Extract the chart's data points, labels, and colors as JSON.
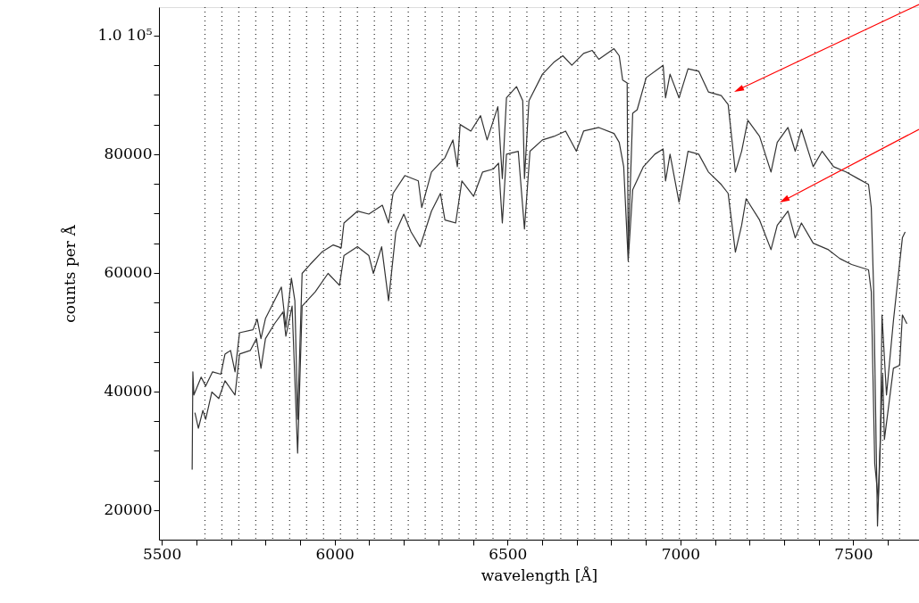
{
  "chart_data": {
    "type": "line",
    "xlabel": "wavelength [Å]",
    "ylabel": "counts per Å",
    "xlim": [
      5492,
      7690
    ],
    "ylim": [
      15000,
      104800
    ],
    "xticks": [
      5500,
      {
        "value": 5600,
        "label": null
      },
      {
        "value": 5700,
        "label": null
      },
      {
        "value": 5800,
        "label": null
      },
      {
        "value": 5900,
        "label": null
      },
      6000,
      {
        "value": 6100,
        "label": null
      },
      {
        "value": 6200,
        "label": null
      },
      {
        "value": 6300,
        "label": null
      },
      {
        "value": 6400,
        "label": null
      },
      6500,
      {
        "value": 6600,
        "label": null
      },
      {
        "value": 6700,
        "label": null
      },
      {
        "value": 6800,
        "label": null
      },
      {
        "value": 6900,
        "label": null
      },
      7000,
      {
        "value": 7100,
        "label": null
      },
      {
        "value": 7200,
        "label": null
      },
      {
        "value": 7300,
        "label": null
      },
      {
        "value": 7400,
        "label": null
      },
      7500,
      {
        "value": 7600,
        "label": null
      }
    ],
    "yticks": [
      20000,
      {
        "value": 25000,
        "label": null
      },
      {
        "value": 30000,
        "label": null
      },
      {
        "value": 35000,
        "label": null
      },
      40000,
      {
        "value": 45000,
        "label": null
      },
      {
        "value": 50000,
        "label": null
      },
      {
        "value": 55000,
        "label": null
      },
      60000,
      {
        "value": 65000,
        "label": null
      },
      {
        "value": 70000,
        "label": null
      },
      {
        "value": 75000,
        "label": null
      },
      80000,
      {
        "value": 85000,
        "label": null
      },
      {
        "value": 90000,
        "label": null
      },
      {
        "value": 95000,
        "label": null
      },
      {
        "value": 100000,
        "label": "1.0 10⁵"
      }
    ],
    "grid": false,
    "marker": "none",
    "line_style": "solid",
    "series": [
      {
        "color": "#333333",
        "x": [
          5588,
          5590,
          5593,
          5614,
          5627,
          5647,
          5671,
          5683,
          5699,
          5712,
          5725,
          5764,
          5776,
          5787,
          5800,
          5826,
          5846,
          5859,
          5875,
          5885,
          5893,
          5906,
          5929,
          5963,
          5996,
          6019,
          6027,
          6066,
          6099,
          6138,
          6156,
          6169,
          6203,
          6242,
          6252,
          6280,
          6319,
          6342,
          6355,
          6363,
          6394,
          6422,
          6441,
          6472,
          6485,
          6497,
          6526,
          6544,
          6549,
          6562,
          6601,
          6634,
          6660,
          6686,
          6720,
          6745,
          6764,
          6808,
          6823,
          6833,
          6846,
          6849,
          6862,
          6875,
          6901,
          6950,
          6957,
          6970,
          6996,
          7022,
          7053,
          7081,
          7118,
          7138,
          7159,
          7177,
          7195,
          7229,
          7262,
          7280,
          7311,
          7332,
          7350,
          7384,
          7410,
          7443,
          7479,
          7513,
          7544,
          7552,
          7559,
          7570,
          7578,
          7583,
          7596,
          7616,
          7642,
          7650
        ],
        "values": [
          26800,
          43300,
          39400,
          42400,
          40900,
          43300,
          42900,
          46300,
          46900,
          43300,
          49900,
          50400,
          52200,
          48900,
          52300,
          55300,
          57600,
          50800,
          59100,
          55300,
          35300,
          59900,
          61400,
          63500,
          64700,
          64200,
          68400,
          70400,
          69900,
          71400,
          68400,
          73400,
          76400,
          75500,
          71000,
          77000,
          79400,
          82400,
          77900,
          85000,
          83900,
          86500,
          82400,
          88000,
          75900,
          89500,
          91400,
          89000,
          75900,
          89000,
          93500,
          95500,
          96600,
          95000,
          97000,
          97500,
          96000,
          97800,
          96600,
          92500,
          92000,
          63900,
          86900,
          87500,
          92900,
          95000,
          89500,
          93500,
          89500,
          94400,
          94000,
          90500,
          89900,
          88400,
          77000,
          80500,
          85700,
          83000,
          77000,
          82000,
          84500,
          80500,
          84200,
          77900,
          80500,
          77900,
          77000,
          75900,
          74900,
          71000,
          56800,
          17300,
          30800,
          52900,
          39400,
          51900,
          65900,
          66900
        ]
      },
      {
        "color": "#333333",
        "x": [
          5596,
          5606,
          5619,
          5627,
          5645,
          5665,
          5683,
          5712,
          5725,
          5756,
          5774,
          5787,
          5800,
          5826,
          5851,
          5859,
          5877,
          5893,
          5906,
          5944,
          5981,
          6014,
          6027,
          6066,
          6099,
          6112,
          6136,
          6156,
          6177,
          6200,
          6221,
          6247,
          6280,
          6306,
          6319,
          6350,
          6368,
          6402,
          6428,
          6459,
          6474,
          6485,
          6497,
          6531,
          6549,
          6565,
          6601,
          6634,
          6668,
          6699,
          6720,
          6764,
          6808,
          6823,
          6836,
          6849,
          6862,
          6893,
          6926,
          6950,
          6957,
          6970,
          6996,
          7022,
          7053,
          7081,
          7118,
          7138,
          7159,
          7177,
          7190,
          7229,
          7262,
          7280,
          7311,
          7332,
          7350,
          7384,
          7428,
          7461,
          7495,
          7544,
          7552,
          7562,
          7572,
          7580,
          7585,
          7590,
          7616,
          7634,
          7642,
          7655
        ],
        "values": [
          36400,
          33800,
          36800,
          35300,
          39900,
          38800,
          41800,
          39400,
          46300,
          46900,
          48900,
          43900,
          48900,
          51400,
          53400,
          49300,
          54400,
          29600,
          54400,
          56800,
          59900,
          57900,
          62900,
          64400,
          62900,
          59900,
          64400,
          55300,
          66900,
          69900,
          66900,
          64400,
          70400,
          73400,
          68900,
          68400,
          75500,
          72900,
          77000,
          77500,
          78500,
          68400,
          80000,
          80500,
          67400,
          80500,
          82400,
          83000,
          83900,
          80500,
          83900,
          84500,
          83500,
          82000,
          77900,
          62000,
          74000,
          77900,
          80000,
          80900,
          75500,
          80000,
          71900,
          80500,
          80000,
          77000,
          74900,
          73400,
          63500,
          68000,
          72500,
          68900,
          63900,
          68000,
          70400,
          65900,
          68400,
          65000,
          63900,
          62400,
          61400,
          60500,
          56800,
          27800,
          21800,
          35300,
          42900,
          31900,
          43900,
          44400,
          52900,
          51400
        ]
      }
    ],
    "ref_lines": [
      {
        "axis": "x",
        "value": 5625,
        "line_style": "dotted"
      },
      {
        "axis": "x",
        "value": 5674,
        "line_style": "dotted"
      },
      {
        "axis": "x",
        "value": 5723,
        "line_style": "dotted"
      },
      {
        "axis": "x",
        "value": 5772,
        "line_style": "dotted"
      },
      {
        "axis": "x",
        "value": 5821,
        "line_style": "dotted"
      },
      {
        "axis": "x",
        "value": 5870,
        "line_style": "dotted"
      },
      {
        "axis": "x",
        "value": 5919,
        "line_style": "dotted"
      },
      {
        "axis": "x",
        "value": 5968,
        "line_style": "dotted"
      },
      {
        "axis": "x",
        "value": 6017,
        "line_style": "dotted"
      },
      {
        "axis": "x",
        "value": 6066,
        "line_style": "dotted"
      },
      {
        "axis": "x",
        "value": 6115,
        "line_style": "dotted"
      },
      {
        "axis": "x",
        "value": 6164,
        "line_style": "dotted"
      },
      {
        "axis": "x",
        "value": 6213,
        "line_style": "dotted"
      },
      {
        "axis": "x",
        "value": 6262,
        "line_style": "dotted"
      },
      {
        "axis": "x",
        "value": 6311,
        "line_style": "dotted"
      },
      {
        "axis": "x",
        "value": 6360,
        "line_style": "dotted"
      },
      {
        "axis": "x",
        "value": 6409,
        "line_style": "dotted"
      },
      {
        "axis": "x",
        "value": 6458,
        "line_style": "dotted"
      },
      {
        "axis": "x",
        "value": 6507,
        "line_style": "dotted"
      },
      {
        "axis": "x",
        "value": 6556,
        "line_style": "dotted"
      },
      {
        "axis": "x",
        "value": 6605,
        "line_style": "dotted"
      },
      {
        "axis": "x",
        "value": 6654,
        "line_style": "dotted"
      },
      {
        "axis": "x",
        "value": 6703,
        "line_style": "dotted"
      },
      {
        "axis": "x",
        "value": 6752,
        "line_style": "dotted"
      },
      {
        "axis": "x",
        "value": 6801,
        "line_style": "dotted"
      },
      {
        "axis": "x",
        "value": 6850,
        "line_style": "dotted"
      },
      {
        "axis": "x",
        "value": 6899,
        "line_style": "dotted"
      },
      {
        "axis": "x",
        "value": 6948,
        "line_style": "dotted"
      },
      {
        "axis": "x",
        "value": 6997,
        "line_style": "dotted"
      },
      {
        "axis": "x",
        "value": 7046,
        "line_style": "dotted"
      },
      {
        "axis": "x",
        "value": 7095,
        "line_style": "dotted"
      },
      {
        "axis": "x",
        "value": 7144,
        "line_style": "dotted"
      },
      {
        "axis": "x",
        "value": 7193,
        "line_style": "dotted"
      },
      {
        "axis": "x",
        "value": 7242,
        "line_style": "dotted"
      },
      {
        "axis": "x",
        "value": 7291,
        "line_style": "dotted"
      },
      {
        "axis": "x",
        "value": 7340,
        "line_style": "dotted"
      },
      {
        "axis": "x",
        "value": 7389,
        "line_style": "dotted"
      },
      {
        "axis": "x",
        "value": 7438,
        "line_style": "dotted"
      },
      {
        "axis": "x",
        "value": 7487,
        "line_style": "dotted"
      },
      {
        "axis": "x",
        "value": 7536,
        "line_style": "dotted"
      },
      {
        "axis": "x",
        "value": 7585,
        "line_style": "dotted"
      },
      {
        "axis": "x",
        "value": 7634,
        "line_style": "dotted"
      }
    ]
  }
}
